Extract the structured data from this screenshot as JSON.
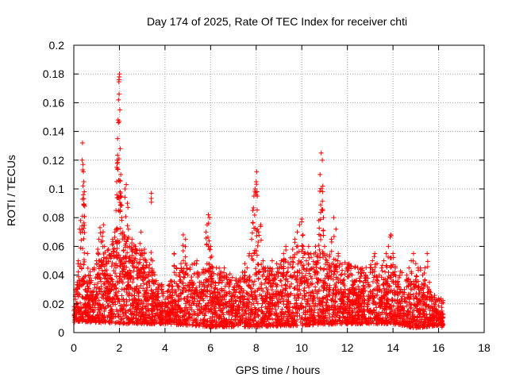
{
  "chart_data": {
    "type": "scatter",
    "title": "Day 174 of 2025, Rate Of TEC Index for receiver chti",
    "xlabel": "GPS time / hours",
    "ylabel": "ROTI / TECUs",
    "xlim": [
      0,
      18
    ],
    "ylim": [
      0,
      0.2
    ],
    "xticks": [
      0,
      2,
      4,
      6,
      8,
      10,
      12,
      14,
      16,
      18
    ],
    "xtick_labels": [
      "0",
      "2",
      "4",
      "6",
      "8",
      "10",
      "12",
      "14",
      "16",
      "18"
    ],
    "yticks": [
      0,
      0.02,
      0.04,
      0.06,
      0.08,
      0.1,
      0.12,
      0.14,
      0.16,
      0.18,
      0.2
    ],
    "ytick_labels": [
      "0",
      "0.02",
      "0.04",
      "0.06",
      "0.08",
      "0.1",
      "0.12",
      "0.14",
      "0.16",
      "0.18",
      "0.2"
    ],
    "grid": true,
    "marker": "+",
    "color": "#ff0000",
    "series": [
      {
        "name": "ROTI",
        "points": [
          [
            0.05,
            0.013
          ],
          [
            0.1,
            0.02
          ],
          [
            0.15,
            0.035
          ],
          [
            0.2,
            0.05
          ],
          [
            0.25,
            0.072
          ],
          [
            0.3,
            0.078
          ],
          [
            0.35,
            0.045
          ],
          [
            0.38,
            0.132
          ],
          [
            0.4,
            0.117
          ],
          [
            0.42,
            0.112
          ],
          [
            0.44,
            0.105
          ],
          [
            0.46,
            0.098
          ],
          [
            0.48,
            0.088
          ],
          [
            0.5,
            0.03
          ],
          [
            0.55,
            0.025
          ],
          [
            0.6,
            0.055
          ],
          [
            0.65,
            0.04
          ],
          [
            0.7,
            0.018
          ],
          [
            0.75,
            0.035
          ],
          [
            0.8,
            0.028
          ],
          [
            0.85,
            0.015
          ],
          [
            0.9,
            0.045
          ],
          [
            0.95,
            0.038
          ],
          [
            1.0,
            0.05
          ],
          [
            1.05,
            0.058
          ],
          [
            1.1,
            0.065
          ],
          [
            1.15,
            0.073
          ],
          [
            1.2,
            0.063
          ],
          [
            1.25,
            0.067
          ],
          [
            1.3,
            0.075
          ],
          [
            1.35,
            0.06
          ],
          [
            1.4,
            0.048
          ],
          [
            1.45,
            0.052
          ],
          [
            1.5,
            0.035
          ],
          [
            1.55,
            0.03
          ],
          [
            1.6,
            0.04
          ],
          [
            1.65,
            0.055
          ],
          [
            1.7,
            0.065
          ],
          [
            1.75,
            0.058
          ],
          [
            1.8,
            0.07
          ],
          [
            1.85,
            0.085
          ],
          [
            1.88,
            0.105
          ],
          [
            1.9,
            0.12
          ],
          [
            1.92,
            0.135
          ],
          [
            1.94,
            0.148
          ],
          [
            1.96,
            0.162
          ],
          [
            1.98,
            0.176
          ],
          [
            2.0,
            0.18
          ],
          [
            2.02,
            0.155
          ],
          [
            2.04,
            0.128
          ],
          [
            2.06,
            0.11
          ],
          [
            2.08,
            0.095
          ],
          [
            2.1,
            0.08
          ],
          [
            2.15,
            0.07
          ],
          [
            2.2,
            0.065
          ],
          [
            2.25,
            0.1
          ],
          [
            2.3,
            0.103
          ],
          [
            2.35,
            0.09
          ],
          [
            2.4,
            0.072
          ],
          [
            2.45,
            0.06
          ],
          [
            2.5,
            0.05
          ],
          [
            2.55,
            0.065
          ],
          [
            2.6,
            0.058
          ],
          [
            2.65,
            0.045
          ],
          [
            2.7,
            0.06
          ],
          [
            2.75,
            0.055
          ],
          [
            2.8,
            0.04
          ],
          [
            2.85,
            0.048
          ],
          [
            2.9,
            0.062
          ],
          [
            2.95,
            0.07
          ],
          [
            3.0,
            0.055
          ],
          [
            3.05,
            0.045
          ],
          [
            3.1,
            0.058
          ],
          [
            3.15,
            0.05
          ],
          [
            3.2,
            0.04
          ],
          [
            3.3,
            0.045
          ],
          [
            3.4,
            0.097
          ],
          [
            3.45,
            0.05
          ],
          [
            3.5,
            0.035
          ],
          [
            3.6,
            0.03
          ],
          [
            3.7,
            0.025
          ],
          [
            3.8,
            0.02
          ],
          [
            3.9,
            0.015
          ],
          [
            4.0,
            0.018
          ],
          [
            4.1,
            0.02
          ],
          [
            4.2,
            0.025
          ],
          [
            4.3,
            0.03
          ],
          [
            4.4,
            0.055
          ],
          [
            4.5,
            0.045
          ],
          [
            4.6,
            0.04
          ],
          [
            4.7,
            0.048
          ],
          [
            4.8,
            0.068
          ],
          [
            4.9,
            0.065
          ],
          [
            5.0,
            0.04
          ],
          [
            5.1,
            0.045
          ],
          [
            5.2,
            0.035
          ],
          [
            5.3,
            0.048
          ],
          [
            5.4,
            0.05
          ],
          [
            5.5,
            0.04
          ],
          [
            5.6,
            0.03
          ],
          [
            5.7,
            0.035
          ],
          [
            5.8,
            0.07
          ],
          [
            5.85,
            0.075
          ],
          [
            5.9,
            0.082
          ],
          [
            5.95,
            0.08
          ],
          [
            6.0,
            0.06
          ],
          [
            6.05,
            0.053
          ],
          [
            6.1,
            0.045
          ],
          [
            6.2,
            0.035
          ],
          [
            6.3,
            0.03
          ],
          [
            6.4,
            0.04
          ],
          [
            6.5,
            0.035
          ],
          [
            6.6,
            0.045
          ],
          [
            6.7,
            0.04
          ],
          [
            6.8,
            0.032
          ],
          [
            6.9,
            0.025
          ],
          [
            7.0,
            0.03
          ],
          [
            7.1,
            0.028
          ],
          [
            7.2,
            0.035
          ],
          [
            7.3,
            0.038
          ],
          [
            7.4,
            0.042
          ],
          [
            7.5,
            0.048
          ],
          [
            7.6,
            0.045
          ],
          [
            7.7,
            0.055
          ],
          [
            7.8,
            0.065
          ],
          [
            7.85,
            0.085
          ],
          [
            7.9,
            0.095
          ],
          [
            7.95,
            0.1
          ],
          [
            8.0,
            0.105
          ],
          [
            8.02,
            0.112
          ],
          [
            8.05,
            0.095
          ],
          [
            8.1,
            0.07
          ],
          [
            8.2,
            0.075
          ],
          [
            8.3,
            0.05
          ],
          [
            8.4,
            0.045
          ],
          [
            8.5,
            0.035
          ],
          [
            8.6,
            0.045
          ],
          [
            8.7,
            0.05
          ],
          [
            8.8,
            0.04
          ],
          [
            8.9,
            0.048
          ],
          [
            9.0,
            0.045
          ],
          [
            9.1,
            0.05
          ],
          [
            9.2,
            0.055
          ],
          [
            9.3,
            0.06
          ],
          [
            9.4,
            0.045
          ],
          [
            9.5,
            0.052
          ],
          [
            9.6,
            0.058
          ],
          [
            9.7,
            0.065
          ],
          [
            9.8,
            0.07
          ],
          [
            9.9,
            0.075
          ],
          [
            10.0,
            0.079
          ],
          [
            10.05,
            0.068
          ],
          [
            10.1,
            0.055
          ],
          [
            10.2,
            0.05
          ],
          [
            10.3,
            0.06
          ],
          [
            10.4,
            0.055
          ],
          [
            10.5,
            0.045
          ],
          [
            10.6,
            0.06
          ],
          [
            10.7,
            0.05
          ],
          [
            10.75,
            0.078
          ],
          [
            10.8,
            0.11
          ],
          [
            10.85,
            0.125
          ],
          [
            10.9,
            0.12
          ],
          [
            10.92,
            0.102
          ],
          [
            10.95,
            0.08
          ],
          [
            11.0,
            0.06
          ],
          [
            11.1,
            0.05
          ],
          [
            11.2,
            0.045
          ],
          [
            11.3,
            0.065
          ],
          [
            11.4,
            0.08
          ],
          [
            11.5,
            0.072
          ],
          [
            11.6,
            0.055
          ],
          [
            11.7,
            0.04
          ],
          [
            11.8,
            0.035
          ],
          [
            11.9,
            0.03
          ],
          [
            12.0,
            0.025
          ],
          [
            12.1,
            0.03
          ],
          [
            12.2,
            0.04
          ],
          [
            12.3,
            0.035
          ],
          [
            12.4,
            0.03
          ],
          [
            12.5,
            0.025
          ],
          [
            12.6,
            0.03
          ],
          [
            12.7,
            0.035
          ],
          [
            12.8,
            0.04
          ],
          [
            12.9,
            0.035
          ],
          [
            13.0,
            0.045
          ],
          [
            13.1,
            0.05
          ],
          [
            13.2,
            0.055
          ],
          [
            13.3,
            0.048
          ],
          [
            13.4,
            0.04
          ],
          [
            13.5,
            0.045
          ],
          [
            13.6,
            0.05
          ],
          [
            13.7,
            0.055
          ],
          [
            13.8,
            0.06
          ],
          [
            13.9,
            0.068
          ],
          [
            14.0,
            0.055
          ],
          [
            14.1,
            0.045
          ],
          [
            14.2,
            0.035
          ],
          [
            14.3,
            0.03
          ],
          [
            14.4,
            0.025
          ],
          [
            14.5,
            0.03
          ],
          [
            14.6,
            0.04
          ],
          [
            14.7,
            0.045
          ],
          [
            14.8,
            0.05
          ],
          [
            14.9,
            0.055
          ],
          [
            15.0,
            0.048
          ],
          [
            15.1,
            0.045
          ],
          [
            15.2,
            0.045
          ],
          [
            15.3,
            0.04
          ],
          [
            15.4,
            0.045
          ],
          [
            15.5,
            0.055
          ],
          [
            15.6,
            0.035
          ],
          [
            15.7,
            0.025
          ],
          [
            15.8,
            0.02
          ],
          [
            15.9,
            0.015
          ],
          [
            16.0,
            0.012
          ],
          [
            16.1,
            0.01
          ],
          [
            16.15,
            0.008
          ]
        ]
      }
    ],
    "dense_band": {
      "description": "baseline dense scatter of ROTI samples",
      "x_range": [
        0,
        16.2
      ],
      "upper": [
        [
          0,
          0.02
        ],
        [
          1,
          0.03
        ],
        [
          2,
          0.045
        ],
        [
          3,
          0.035
        ],
        [
          4,
          0.02
        ],
        [
          5,
          0.03
        ],
        [
          6,
          0.03
        ],
        [
          7,
          0.025
        ],
        [
          8,
          0.03
        ],
        [
          9,
          0.03
        ],
        [
          10,
          0.035
        ],
        [
          11,
          0.035
        ],
        [
          12,
          0.03
        ],
        [
          13,
          0.03
        ],
        [
          14,
          0.03
        ],
        [
          15,
          0.025
        ],
        [
          16,
          0.015
        ]
      ],
      "lower": [
        [
          0,
          0.008
        ],
        [
          2,
          0.006
        ],
        [
          4,
          0.006
        ],
        [
          6,
          0.004
        ],
        [
          8,
          0.004
        ],
        [
          10,
          0.005
        ],
        [
          12,
          0.006
        ],
        [
          14,
          0.006
        ],
        [
          15,
          0.003
        ],
        [
          16,
          0.005
        ]
      ]
    }
  }
}
